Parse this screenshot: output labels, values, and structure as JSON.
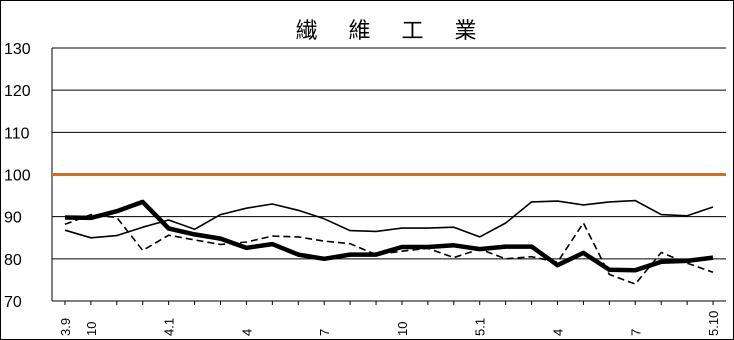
{
  "chart_data": {
    "type": "line",
    "title": "繊 維 工 業",
    "xlabel": "",
    "ylabel": "",
    "ylim": [
      70,
      130
    ],
    "yticks": [
      70,
      80,
      90,
      100,
      110,
      120,
      130
    ],
    "x": [
      "3.9",
      "3.10",
      "3.11",
      "3.12",
      "4.1",
      "4.2",
      "4.3",
      "4.4",
      "4.5",
      "4.6",
      "4.7",
      "4.8",
      "4.9",
      "4.10",
      "4.11",
      "4.12",
      "5.1",
      "5.2",
      "5.3",
      "5.4",
      "5.5",
      "5.6",
      "5.7",
      "5.8",
      "5.9",
      "5.10"
    ],
    "x_tick_labels": [
      "3.9",
      "10",
      "",
      "",
      "4.1",
      "",
      "",
      "4",
      "",
      "",
      "7",
      "",
      "",
      "10",
      "",
      "",
      "5.1",
      "",
      "",
      "4",
      "",
      "",
      "7",
      "",
      "",
      "5.10"
    ],
    "reference_line": {
      "value": 100,
      "color": "#e36c09"
    },
    "grid": true,
    "series": [
      {
        "style": "thick",
        "color": "#000000",
        "values": [
          89.8,
          89.7,
          91.3,
          93.5,
          87.2,
          85.8,
          84.8,
          82.6,
          83.5,
          81.0,
          80.0,
          81.0,
          81.0,
          82.8,
          82.8,
          83.2,
          82.3,
          82.9,
          82.9,
          78.5,
          81.4,
          77.4,
          77.3,
          79.3,
          79.5,
          80.3
        ]
      },
      {
        "style": "thin",
        "color": "#000000",
        "values": [
          86.8,
          85.0,
          85.5,
          87.5,
          89.2,
          87.0,
          90.5,
          92.0,
          93.0,
          91.5,
          89.5,
          86.7,
          86.5,
          87.3,
          87.3,
          87.5,
          85.2,
          88.5,
          93.5,
          93.7,
          92.8,
          93.5,
          93.8,
          90.5,
          90.2,
          92.3
        ]
      },
      {
        "style": "dashed",
        "color": "#000000",
        "values": [
          88.2,
          90.5,
          89.8,
          82.0,
          85.6,
          84.5,
          83.4,
          84.0,
          85.4,
          85.2,
          84.2,
          83.6,
          81.0,
          81.8,
          82.5,
          80.3,
          82.3,
          80.0,
          80.5,
          79.2,
          88.5,
          76.3,
          74.0,
          81.5,
          79.0,
          76.8
        ]
      }
    ]
  }
}
